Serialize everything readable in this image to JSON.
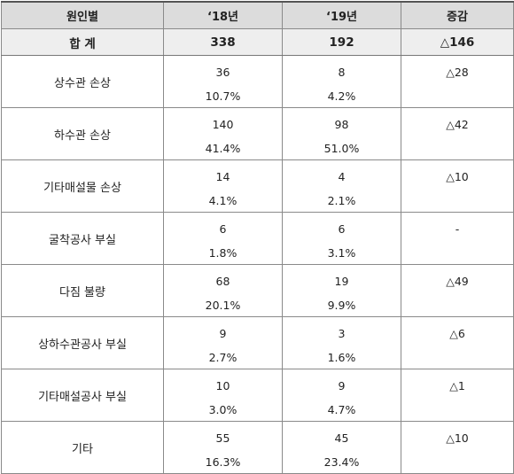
{
  "header": {
    "col1": "원인별",
    "col2": "‘18년",
    "col3": "‘19년",
    "col4": "증감"
  },
  "total": {
    "label": "합  계",
    "y18": "338",
    "y19": "192",
    "change": "△146"
  },
  "rows": [
    {
      "label": "상수관 손상",
      "y18": "36",
      "y18_pct": "10.7%",
      "y19": "8",
      "y19_pct": "4.2%",
      "change": "△28"
    },
    {
      "label": "하수관 손상",
      "y18": "140",
      "y18_pct": "41.4%",
      "y19": "98",
      "y19_pct": "51.0%",
      "change": "△42"
    },
    {
      "label": "기타매설물 손상",
      "y18": "14",
      "y18_pct": "4.1%",
      "y19": "4",
      "y19_pct": "2.1%",
      "change": "△10"
    },
    {
      "label": "굴착공사 부실",
      "y18": "6",
      "y18_pct": "1.8%",
      "y19": "6",
      "y19_pct": "3.1%",
      "change": "-"
    },
    {
      "label": "다짐 불량",
      "y18": "68",
      "y18_pct": "20.1%",
      "y19": "19",
      "y19_pct": "9.9%",
      "change": "△49"
    },
    {
      "label": "상하수관공사 부실",
      "y18": "9",
      "y18_pct": "2.7%",
      "y19": "3",
      "y19_pct": "1.6%",
      "change": "△6"
    },
    {
      "label": "기타매설공사 부실",
      "y18": "10",
      "y18_pct": "3.0%",
      "y19": "9",
      "y19_pct": "4.7%",
      "change": "△1"
    },
    {
      "label": "기타",
      "y18": "55",
      "y18_pct": "16.3%",
      "y19": "45",
      "y19_pct": "23.4%",
      "change": "△10"
    }
  ]
}
